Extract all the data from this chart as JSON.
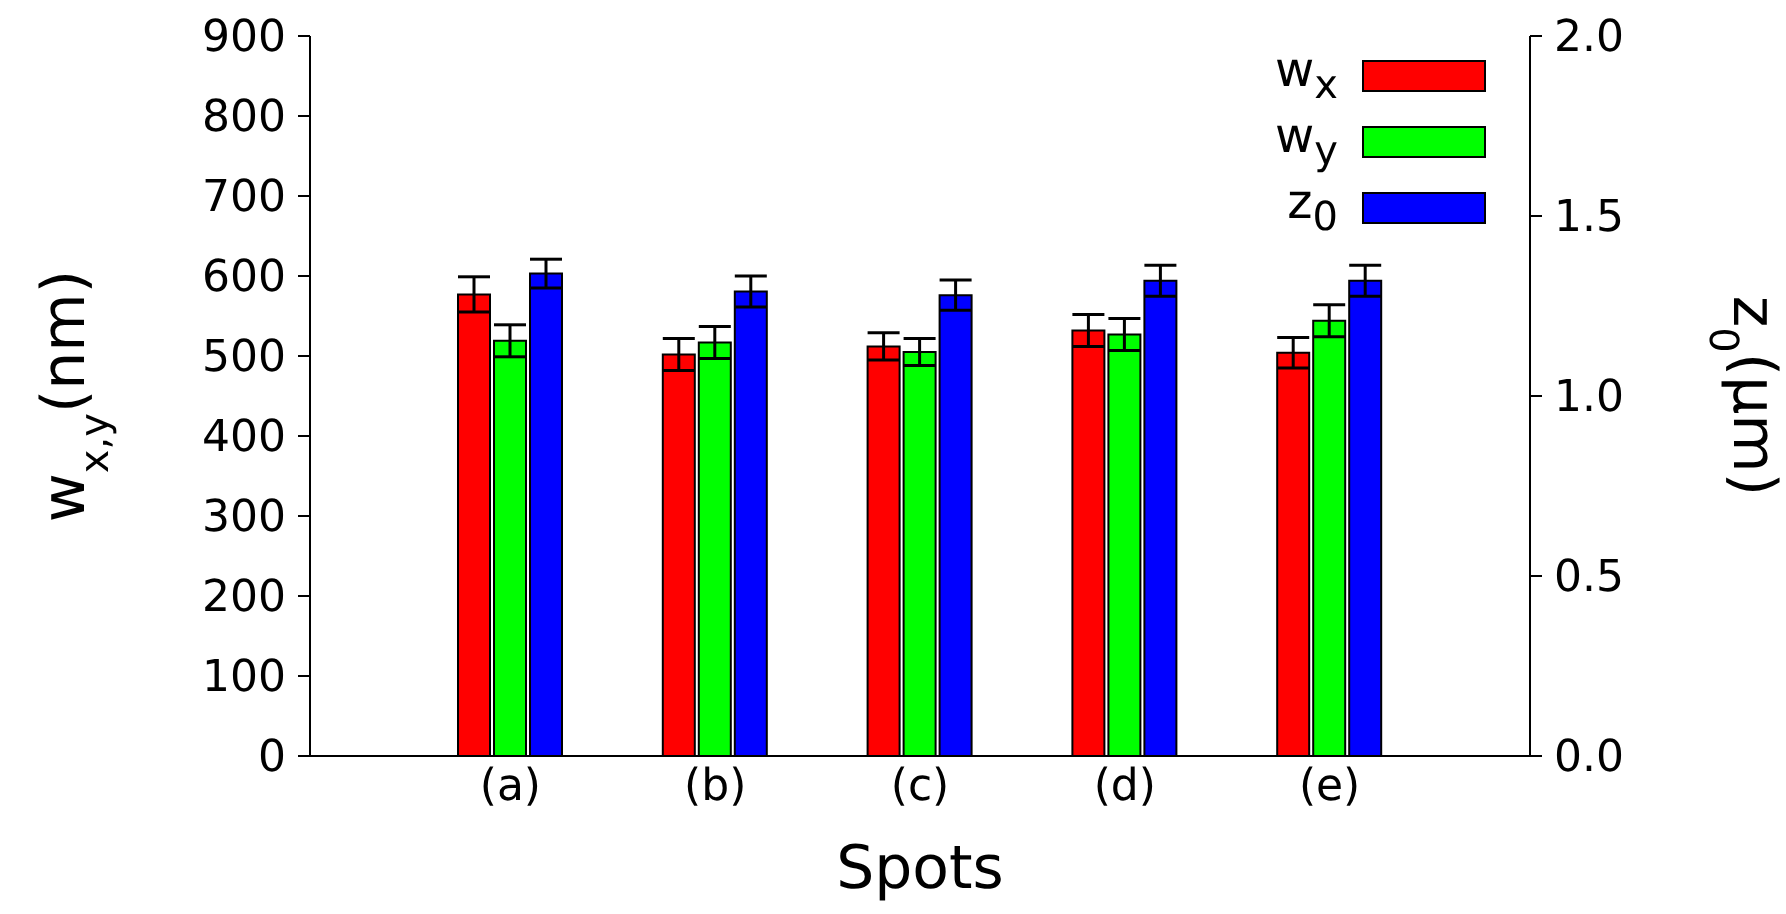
{
  "chart_data": {
    "type": "bar",
    "xlabel": "Spots",
    "ylabel": "w$_{x,y}$(nm)",
    "y2label": "z$_{0}$(μm)",
    "categories": [
      "(a)",
      "(b)",
      "(c)",
      "(d)",
      "(e)"
    ],
    "series": [
      {
        "name": "w$_{x}$",
        "color": "#ff0000",
        "values": [
          577,
          502,
          512,
          532,
          504
        ],
        "errors": [
          22,
          20,
          17,
          20,
          19
        ]
      },
      {
        "name": "w$_{y}$",
        "color": "#00ff00",
        "values": [
          519,
          517,
          505,
          527,
          544
        ],
        "errors": [
          20,
          20,
          17,
          20,
          20
        ]
      },
      {
        "name": "z$_{0}$",
        "color": "#0000ff",
        "axis": "y2",
        "values": [
          1.34,
          1.29,
          1.28,
          1.32,
          1.32
        ],
        "errors": [
          0.04,
          0.043,
          0.042,
          0.043,
          0.043
        ]
      }
    ],
    "ylim": [
      0,
      900
    ],
    "yticks": [
      0,
      100,
      200,
      300,
      400,
      500,
      600,
      700,
      800,
      900
    ],
    "y2lim": [
      0,
      2
    ],
    "y2ticks": [
      {
        "value": 0,
        "label": "0.0"
      },
      {
        "value": 0.5,
        "label": "0.5"
      },
      {
        "value": 1,
        "label": "1.0"
      },
      {
        "value": 1.5,
        "label": "1.5"
      },
      {
        "value": 2,
        "label": "2.0"
      }
    ],
    "legend": "top right"
  }
}
